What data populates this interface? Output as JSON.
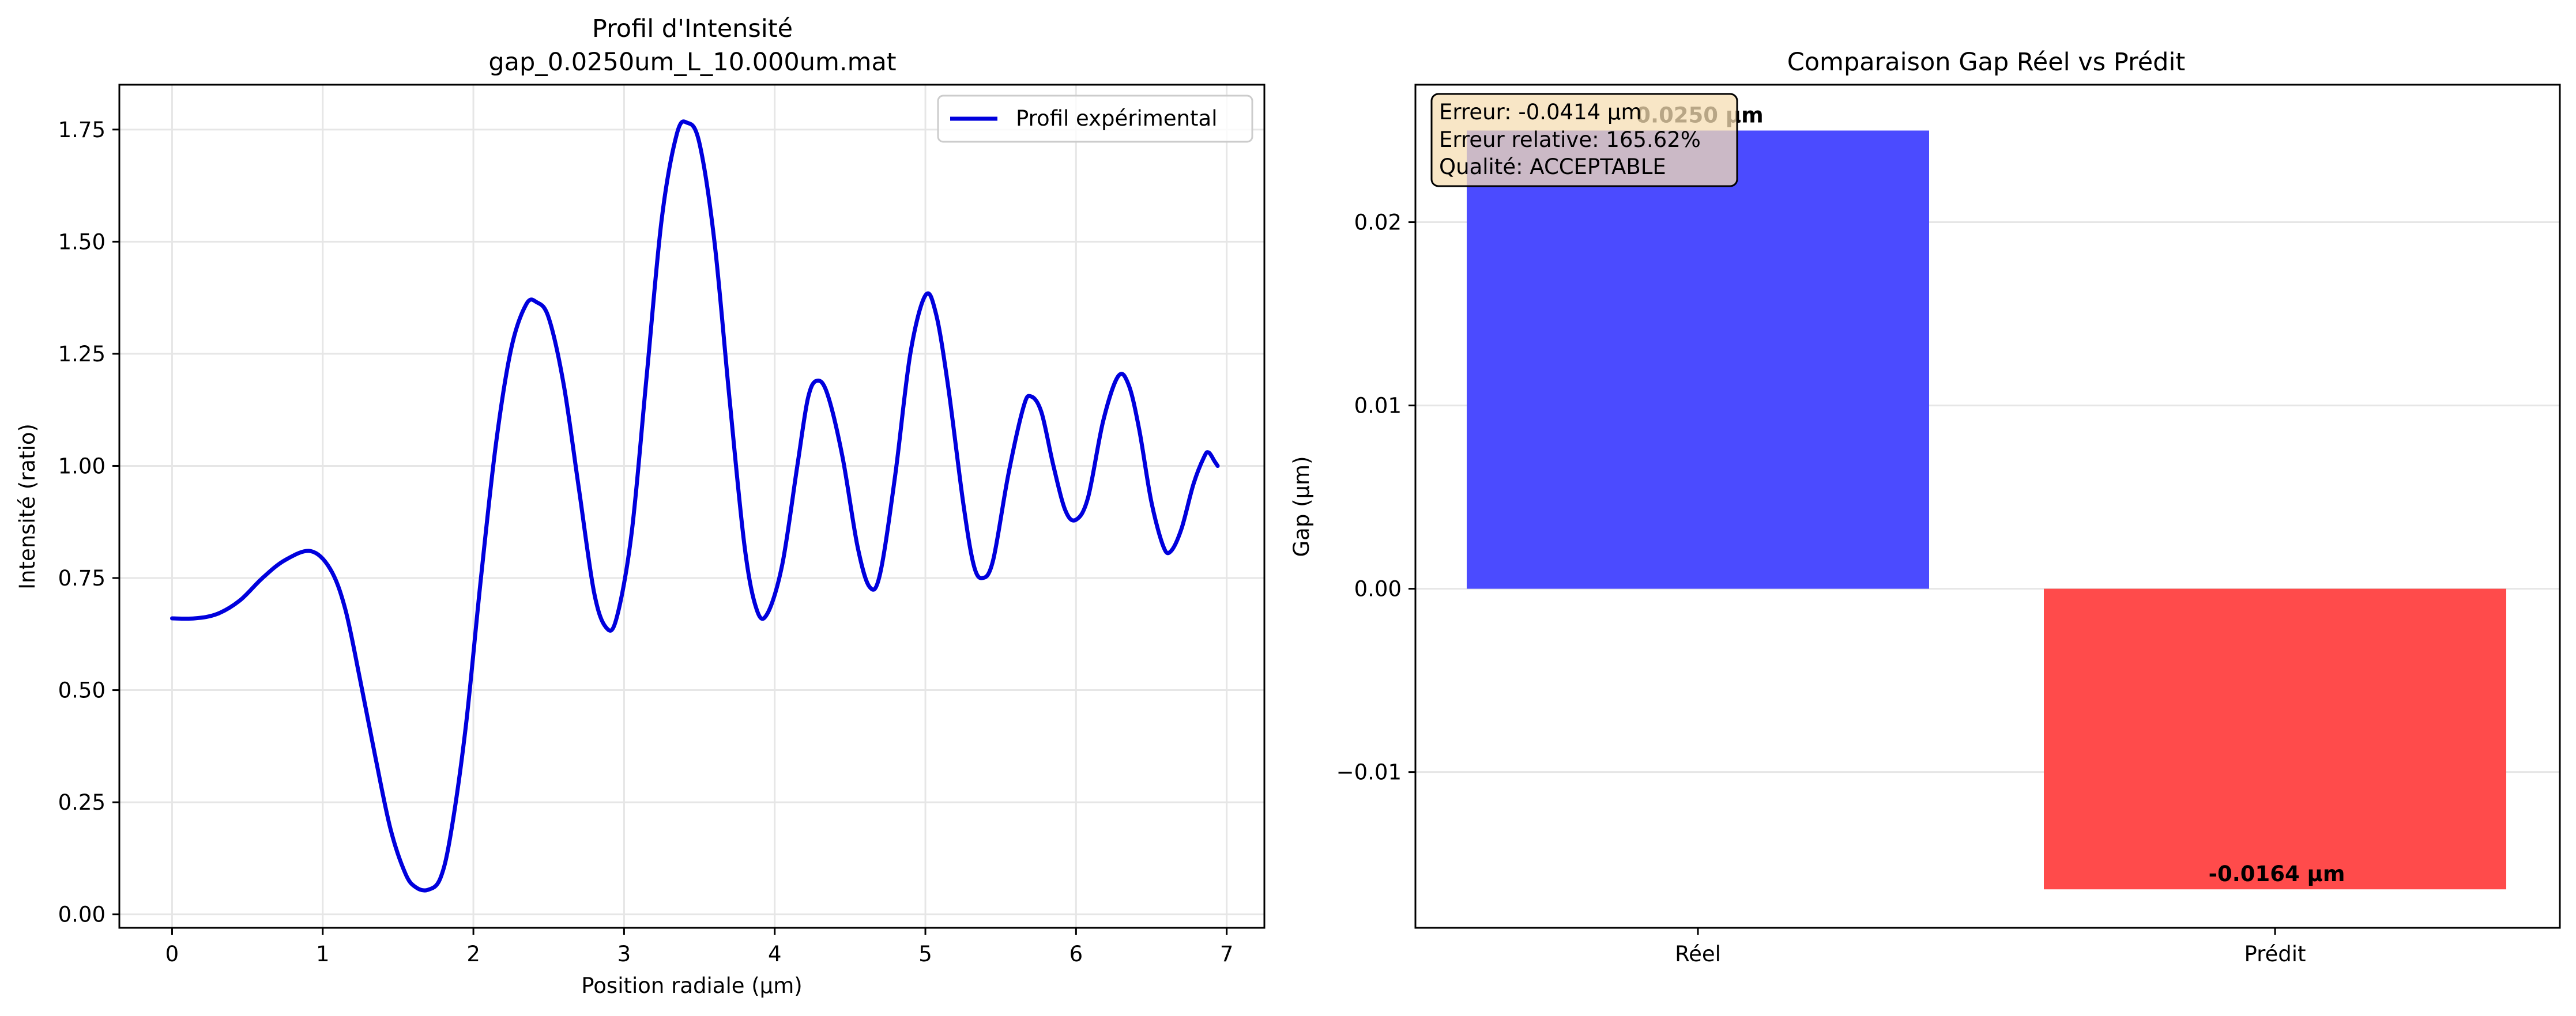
{
  "chart_data": [
    {
      "type": "line",
      "title": "Profil d'Intensité\ngap_0.0250um_L_10.000um.mat",
      "title_lines": [
        "Profil d'Intensité",
        "gap_0.0250um_L_10.000um.mat"
      ],
      "xlabel": "Position radiale (µm)",
      "ylabel": "Intensité (ratio)",
      "xlim": [
        -0.35,
        7.25
      ],
      "ylim": [
        -0.03,
        1.85
      ],
      "xticks": [
        0,
        1,
        2,
        3,
        4,
        5,
        6,
        7
      ],
      "xtick_labels": [
        "0",
        "1",
        "2",
        "3",
        "4",
        "5",
        "6",
        "7"
      ],
      "yticks": [
        0.0,
        0.25,
        0.5,
        0.75,
        1.0,
        1.25,
        1.5,
        1.75
      ],
      "ytick_labels": [
        "0.00",
        "0.25",
        "0.50",
        "0.75",
        "1.00",
        "1.25",
        "1.50",
        "1.75"
      ],
      "grid": true,
      "legend": "upper right",
      "series": [
        {
          "name": "Profil expérimental",
          "color": "#0000dd",
          "points": [
            [
              0.0,
              0.66
            ],
            [
              0.15,
              0.66
            ],
            [
              0.3,
              0.67
            ],
            [
              0.45,
              0.7
            ],
            [
              0.6,
              0.75
            ],
            [
              0.75,
              0.79
            ],
            [
              0.92,
              0.81
            ],
            [
              1.05,
              0.77
            ],
            [
              1.15,
              0.68
            ],
            [
              1.25,
              0.52
            ],
            [
              1.35,
              0.35
            ],
            [
              1.45,
              0.19
            ],
            [
              1.55,
              0.09
            ],
            [
              1.62,
              0.06
            ],
            [
              1.7,
              0.055
            ],
            [
              1.78,
              0.08
            ],
            [
              1.85,
              0.18
            ],
            [
              1.95,
              0.42
            ],
            [
              2.05,
              0.75
            ],
            [
              2.15,
              1.05
            ],
            [
              2.25,
              1.26
            ],
            [
              2.35,
              1.36
            ],
            [
              2.42,
              1.365
            ],
            [
              2.5,
              1.33
            ],
            [
              2.6,
              1.18
            ],
            [
              2.7,
              0.95
            ],
            [
              2.8,
              0.72
            ],
            [
              2.88,
              0.64
            ],
            [
              2.95,
              0.66
            ],
            [
              3.05,
              0.85
            ],
            [
              3.15,
              1.2
            ],
            [
              3.25,
              1.55
            ],
            [
              3.35,
              1.74
            ],
            [
              3.42,
              1.765
            ],
            [
              3.5,
              1.72
            ],
            [
              3.6,
              1.5
            ],
            [
              3.7,
              1.15
            ],
            [
              3.8,
              0.82
            ],
            [
              3.88,
              0.68
            ],
            [
              3.95,
              0.67
            ],
            [
              4.05,
              0.78
            ],
            [
              4.15,
              1.0
            ],
            [
              4.22,
              1.15
            ],
            [
              4.28,
              1.19
            ],
            [
              4.35,
              1.16
            ],
            [
              4.45,
              1.02
            ],
            [
              4.55,
              0.82
            ],
            [
              4.63,
              0.73
            ],
            [
              4.7,
              0.76
            ],
            [
              4.8,
              0.98
            ],
            [
              4.9,
              1.25
            ],
            [
              5.0,
              1.38
            ],
            [
              5.07,
              1.34
            ],
            [
              5.15,
              1.18
            ],
            [
              5.25,
              0.92
            ],
            [
              5.32,
              0.78
            ],
            [
              5.38,
              0.75
            ],
            [
              5.45,
              0.79
            ],
            [
              5.55,
              0.98
            ],
            [
              5.65,
              1.13
            ],
            [
              5.7,
              1.155
            ],
            [
              5.77,
              1.12
            ],
            [
              5.85,
              1.0
            ],
            [
              5.93,
              0.9
            ],
            [
              6.0,
              0.88
            ],
            [
              6.08,
              0.93
            ],
            [
              6.18,
              1.1
            ],
            [
              6.28,
              1.2
            ],
            [
              6.35,
              1.18
            ],
            [
              6.42,
              1.08
            ],
            [
              6.5,
              0.92
            ],
            [
              6.58,
              0.82
            ],
            [
              6.63,
              0.81
            ],
            [
              6.7,
              0.86
            ],
            [
              6.78,
              0.96
            ],
            [
              6.85,
              1.02
            ],
            [
              6.88,
              1.03
            ],
            [
              6.92,
              1.01
            ],
            [
              6.94,
              1.0
            ]
          ]
        }
      ]
    },
    {
      "type": "bar",
      "title": "Comparaison Gap Réel vs Prédit",
      "xlabel": "",
      "ylabel": "Gap (µm)",
      "categories": [
        "Réel",
        "Prédit"
      ],
      "values": [
        0.025,
        -0.0164
      ],
      "colors": [
        "#4b4bff",
        "#ff4b4b"
      ],
      "value_labels": [
        "0.0250 µm",
        "-0.0164 µm"
      ],
      "ylim": [
        -0.0185,
        0.0275
      ],
      "yticks": [
        -0.01,
        0.0,
        0.01,
        0.02
      ],
      "ytick_labels": [
        "−0.01",
        "0.00",
        "0.01",
        "0.02"
      ],
      "grid": true,
      "annotation": {
        "lines": [
          "Erreur: -0.0414 µm",
          "Erreur relative: 165.62%",
          "Qualité: ACCEPTABLE"
        ],
        "background": "#f5deb3"
      }
    }
  ]
}
